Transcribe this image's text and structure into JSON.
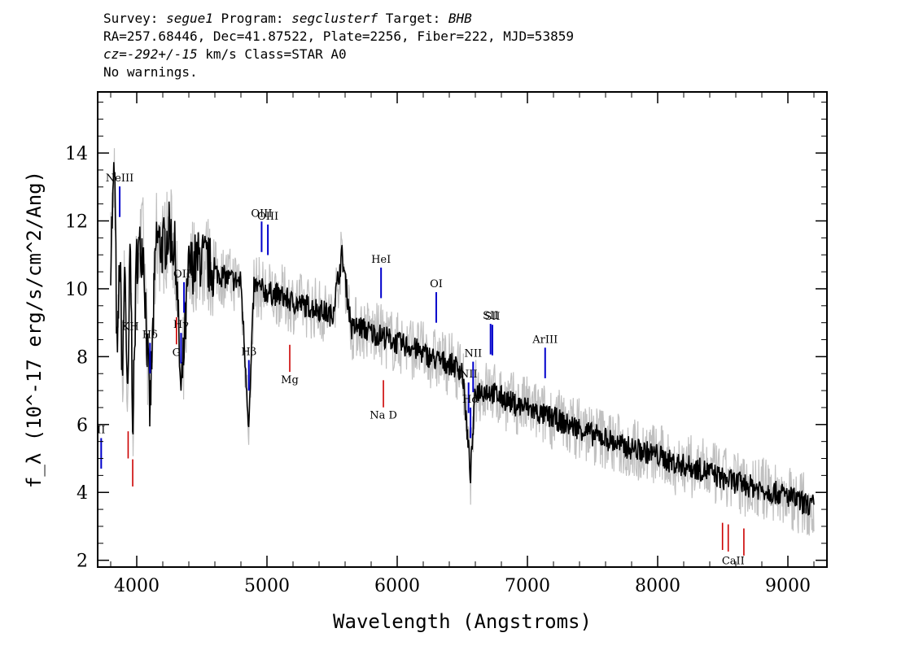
{
  "header": {
    "line1": {
      "survey_label": "Survey: ",
      "survey": "segue1",
      "program_label": " Program: ",
      "program": "segclusterf",
      "target_label": " Target: ",
      "target": "BHB"
    },
    "line2": "RA=257.68446, Dec=41.87522, Plate=2256, Fiber=222, MJD=53859",
    "line3": {
      "cz": "cz=-292+/-15",
      "rest": " km/s Class=STAR A0"
    },
    "line4": "No warnings."
  },
  "chart_data": {
    "type": "line",
    "xlabel": "Wavelength (Angstroms)",
    "ylabel": "f_λ (10^-17 erg/s/cm^2/Ang)",
    "xlim": [
      3700,
      9300
    ],
    "ylim": [
      1.8,
      15.8
    ],
    "xticks": [
      4000,
      5000,
      6000,
      7000,
      8000,
      9000
    ],
    "yticks": [
      2,
      4,
      6,
      8,
      10,
      12,
      14
    ],
    "grid": false,
    "colors": {
      "flux": "#000000",
      "noise": "#c0c0c0",
      "emission": "#0000cc",
      "absorption": "#cc0000"
    },
    "series": [
      {
        "role": "flux",
        "x": [
          3800,
          3830,
          3850,
          3870,
          3890,
          3910,
          3930,
          3950,
          3970,
          4000,
          4050,
          4101,
          4150,
          4200,
          4250,
          4300,
          4340,
          4400,
          4450,
          4500,
          4600,
          4700,
          4800,
          4861,
          4900,
          5000,
          5100,
          5200,
          5300,
          5400,
          5500,
          5577,
          5650,
          5700,
          5800,
          5900,
          6000,
          6100,
          6200,
          6300,
          6400,
          6500,
          6563,
          6600,
          6700,
          6800,
          6900,
          7000,
          7100,
          7200,
          7300,
          7400,
          7500,
          7600,
          7700,
          7800,
          7900,
          8000,
          8100,
          8200,
          8300,
          8400,
          8500,
          8600,
          8700,
          8800,
          8900,
          9000,
          9100,
          9200
        ],
        "y": [
          11.0,
          13.7,
          7.5,
          11.2,
          7.2,
          11.0,
          6.0,
          11.5,
          6.0,
          11.0,
          11.3,
          6.3,
          11.5,
          11.2,
          11.7,
          11.0,
          6.7,
          10.6,
          10.8,
          10.9,
          10.5,
          10.3,
          10.2,
          5.9,
          10.1,
          9.9,
          9.8,
          9.6,
          9.5,
          9.4,
          9.2,
          11.0,
          8.8,
          8.9,
          8.7,
          8.6,
          8.4,
          8.3,
          8.1,
          7.9,
          7.8,
          7.6,
          4.5,
          7.0,
          7.0,
          6.8,
          6.6,
          6.5,
          6.3,
          6.2,
          6.0,
          5.9,
          5.7,
          5.6,
          5.4,
          5.3,
          5.2,
          5.1,
          4.9,
          4.8,
          4.7,
          4.6,
          4.4,
          4.3,
          4.2,
          4.1,
          4.0,
          3.9,
          3.7,
          3.6
        ]
      }
    ],
    "emission_lines": [
      {
        "label": "II",
        "x": 3727
      },
      {
        "label": "NeIII",
        "x": 3869
      },
      {
        "label": "Hδ",
        "x": 4102
      },
      {
        "label": "Hγ",
        "x": 4340
      },
      {
        "label": "OIII",
        "x": 4363
      },
      {
        "label": "Hβ",
        "x": 4861
      },
      {
        "label": "OIII",
        "x": 4959
      },
      {
        "label": "OIII",
        "x": 5007
      },
      {
        "label": "HeI",
        "x": 5876
      },
      {
        "label": "OI",
        "x": 6300
      },
      {
        "label": "NII",
        "x": 6548
      },
      {
        "label": "Hα",
        "x": 6563
      },
      {
        "label": "NII",
        "x": 6583
      },
      {
        "label": "SII",
        "x": 6717
      },
      {
        "label": "SII",
        "x": 6731
      },
      {
        "label": "ArIII",
        "x": 7136
      }
    ],
    "absorption_lines": [
      {
        "label": "K",
        "x": 3934
      },
      {
        "label": "H",
        "x": 3969
      },
      {
        "label": "G",
        "x": 4305
      },
      {
        "label": "Mg",
        "x": 5175
      },
      {
        "label": "Na D",
        "x": 5894
      },
      {
        "label": "CaII",
        "x": 8498
      },
      {
        "label": "CaII",
        "x": 8542
      },
      {
        "label": "CaII",
        "x": 8662
      }
    ],
    "absorption_labels": [
      {
        "text": "KH",
        "x": 3951
      },
      {
        "text": "G",
        "x": 4305
      },
      {
        "text": "Mg",
        "x": 5175
      },
      {
        "text": "Na D",
        "x": 5894
      },
      {
        "text": "CaII",
        "x": 8580
      }
    ]
  }
}
